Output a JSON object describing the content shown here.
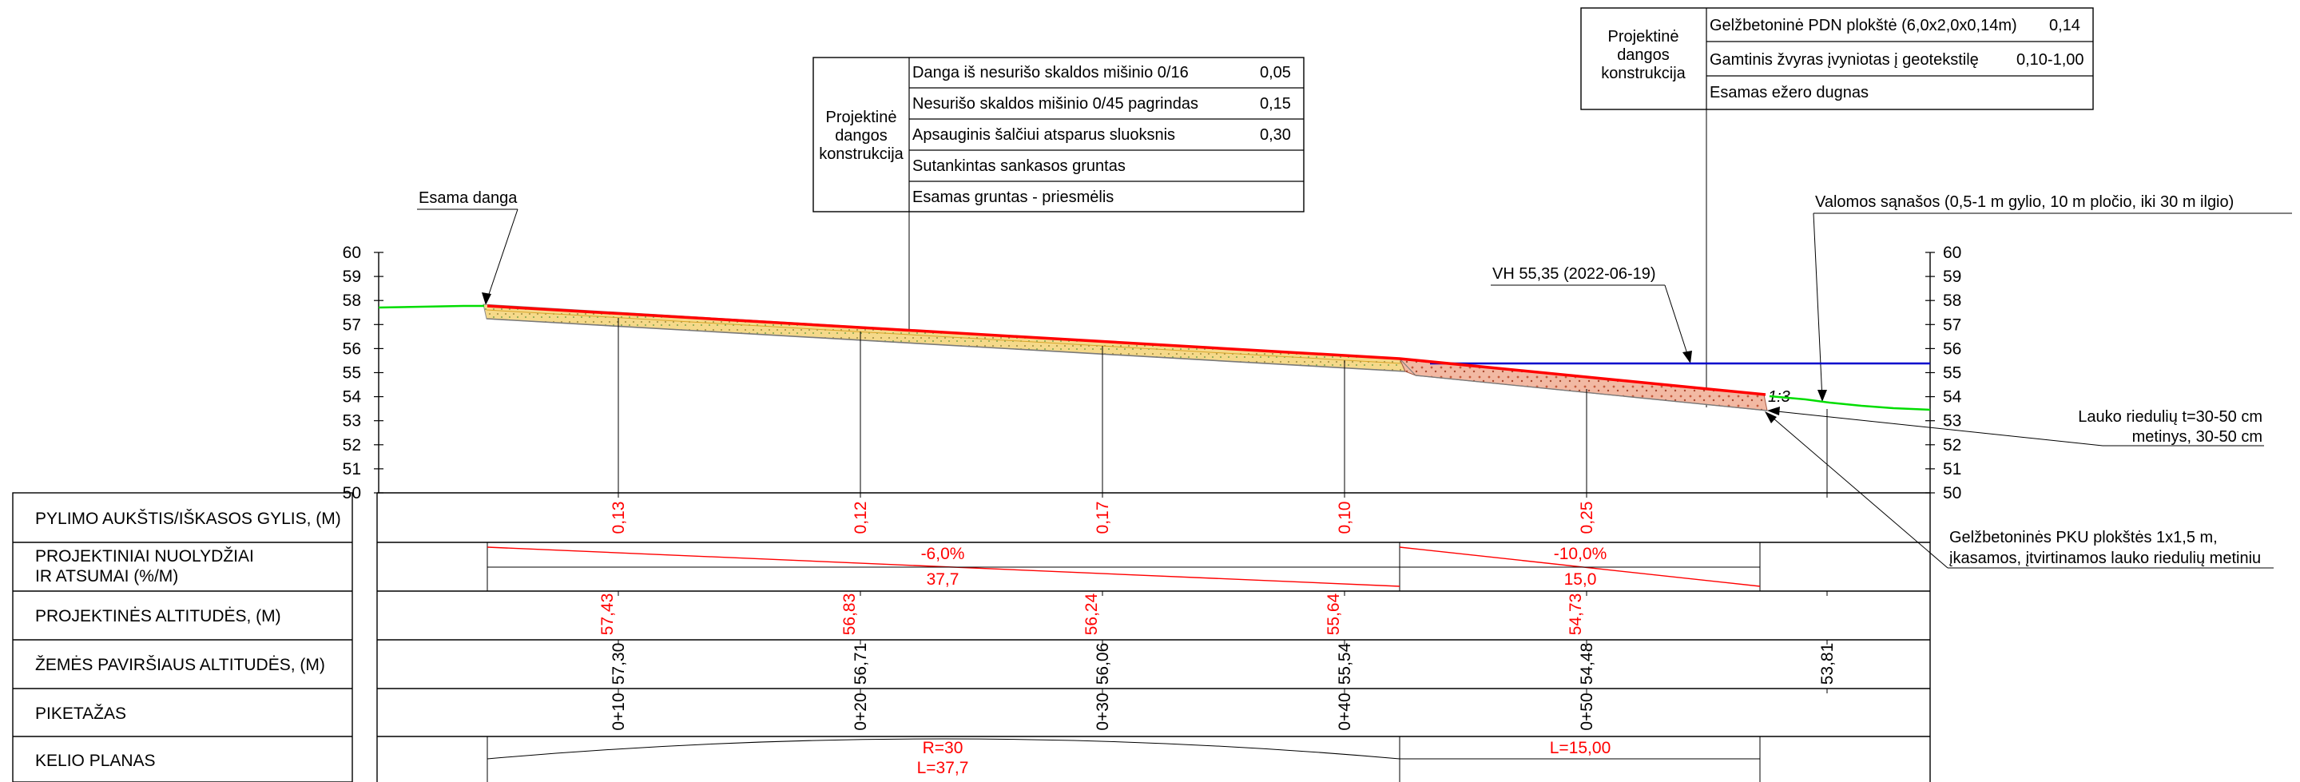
{
  "legend_left": {
    "title_lines": [
      "Projektinė",
      "dangos",
      "konstrukcija"
    ],
    "rows": [
      {
        "label": "Danga iš nesurišo skaldos mišinio 0/16",
        "value": "0,05"
      },
      {
        "label": "Nesurišo skaldos mišinio 0/45 pagrindas",
        "value": "0,15"
      },
      {
        "label": "Apsauginis šalčiui atsparus sluoksnis",
        "value": "0,30"
      },
      {
        "label": "Sutankintas sankasos gruntas",
        "value": ""
      },
      {
        "label": "Esamas gruntas - priesmėlis",
        "value": ""
      }
    ]
  },
  "legend_right": {
    "title_lines": [
      "Projektinė",
      "dangos",
      "konstrukcija"
    ],
    "rows": [
      {
        "label": "Gelžbetoninė PDN plokštė (6,0x2,0x0,14m)",
        "value": "0,14"
      },
      {
        "label": "Gamtinis žvyras įvyniotas į geotekstilę",
        "value": "0,10-1,00"
      },
      {
        "label": "Esamas ežero dugnas",
        "value": ""
      }
    ]
  },
  "callouts": {
    "existing_surface": "Esama danga",
    "water_level": "VH 55,35 (2022-06-19)",
    "sediments": "Valomos sąnašos (0,5-1 m gylio, 10 m pločio, iki 30 m ilgio)",
    "boulders_line1": "Lauko riedulių t=30-50 cm",
    "boulders_line2": "metinys, 30-50 cm",
    "slabs_line1": "Gelžbetoninės PKU plokštės 1x1,5 m,",
    "slabs_line2": "įkasamos, įtvirtinamos lauko riedulių metiniu",
    "slope": "1:3"
  },
  "axis": {
    "ticks": [
      "60",
      "59",
      "58",
      "57",
      "56",
      "55",
      "54",
      "53",
      "52",
      "51",
      "50"
    ],
    "min": 50,
    "max": 60
  },
  "table": {
    "row_labels": [
      "PYLIMO AUKŠTIS/IŠKASOS GYLIS, (M)",
      "PROJEKTINIAI NUOLYDŽIAI",
      "IR ATSUMAI (%/M)",
      "PROJEKTINĖS ALTITUDĖS, (M)",
      "ŽEMĖS PAVIRŠIAUS ALTITUDĖS, (M)",
      "PIKETAŽAS",
      "KELIO PLANAS"
    ],
    "stations": [
      {
        "piketas": "0+10",
        "fill": "0,13",
        "design": "57,43",
        "ground": "57,30"
      },
      {
        "piketas": "0+20",
        "fill": "0,12",
        "design": "56,83",
        "ground": "56,71"
      },
      {
        "piketas": "0+30",
        "fill": "0,17",
        "design": "56,24",
        "ground": "56,06"
      },
      {
        "piketas": "0+40",
        "fill": "0,10",
        "design": "55,64",
        "ground": "55,54"
      },
      {
        "piketas": "0+50",
        "fill": "0,25",
        "design": "54,73",
        "ground": "54,48"
      },
      {
        "piketas": "",
        "fill": "",
        "design": "",
        "ground": "53,81"
      }
    ],
    "slopes": [
      {
        "grade": "-6,0%",
        "length": "37,7"
      },
      {
        "grade": "-10,0%",
        "length": "15,0"
      }
    ],
    "plan": [
      {
        "line1": "R=30",
        "line2": "L=37,7"
      },
      {
        "line1": "L=15,00",
        "line2": ""
      }
    ]
  },
  "colors": {
    "design_line": "#ff0000",
    "water_line": "#0000cc",
    "ground_line": "#00dd00",
    "gravel_fill": "#f5d98a",
    "stone_fill": "#f2b9a3",
    "value_text": "#ff0000"
  }
}
